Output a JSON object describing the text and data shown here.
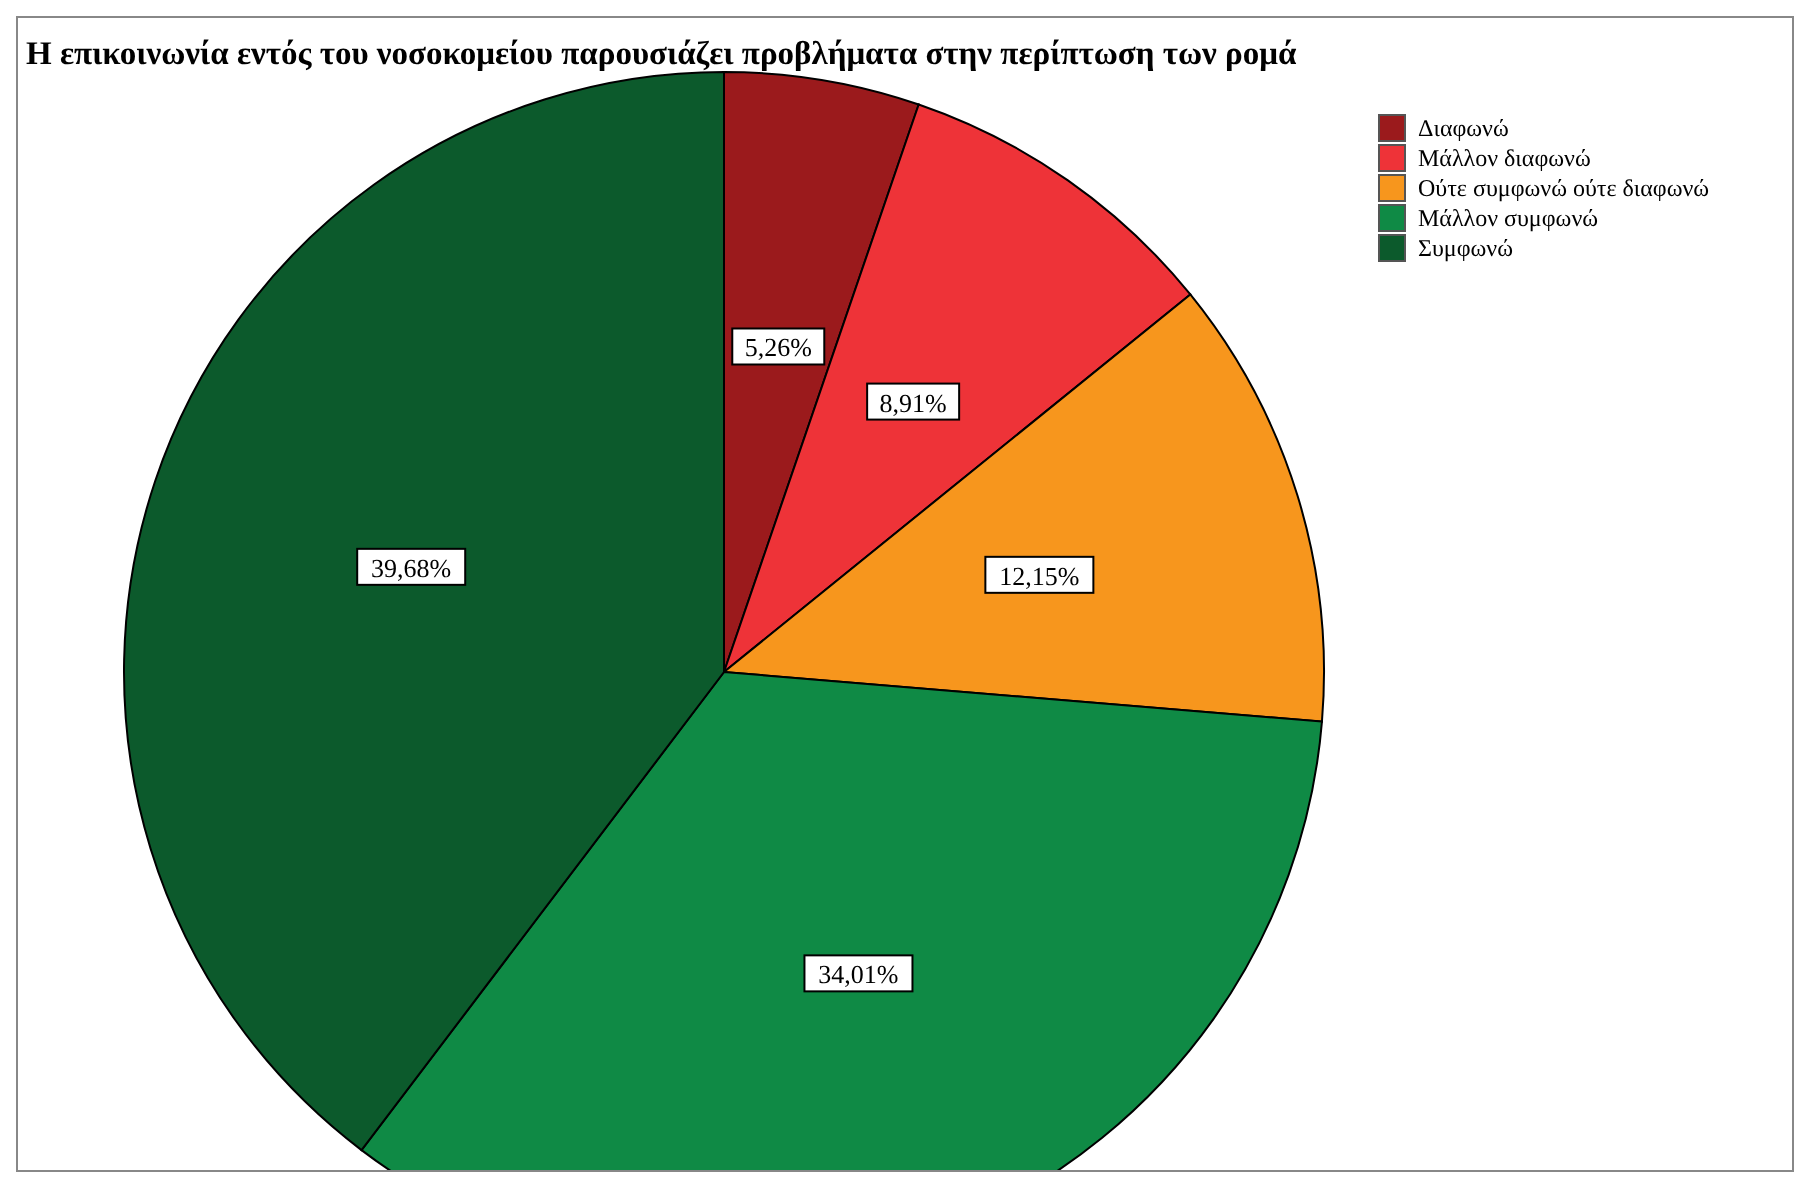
{
  "chart_data": {
    "type": "pie",
    "title": "Η επικοινωνία εντός του νοσοκομείου παρουσιάζει προβλήματα στην περίπτωση των ρομά",
    "categories": [
      "Διαφωνώ",
      "Μάλλον διαφωνώ",
      "Ούτε συμφωνώ ούτε διαφωνώ",
      "Μάλλον συμφωνώ",
      "Συμφωνώ"
    ],
    "values": [
      5.26,
      8.91,
      12.15,
      34.01,
      39.68
    ],
    "colors": [
      "#9b1a1c",
      "#ee3338",
      "#f7961d",
      "#0f8a45",
      "#0c5a2c"
    ],
    "value_labels": [
      "5,26%",
      "8,91%",
      "12,15%",
      "34,01%",
      "39,68%"
    ],
    "legend": "top right"
  }
}
